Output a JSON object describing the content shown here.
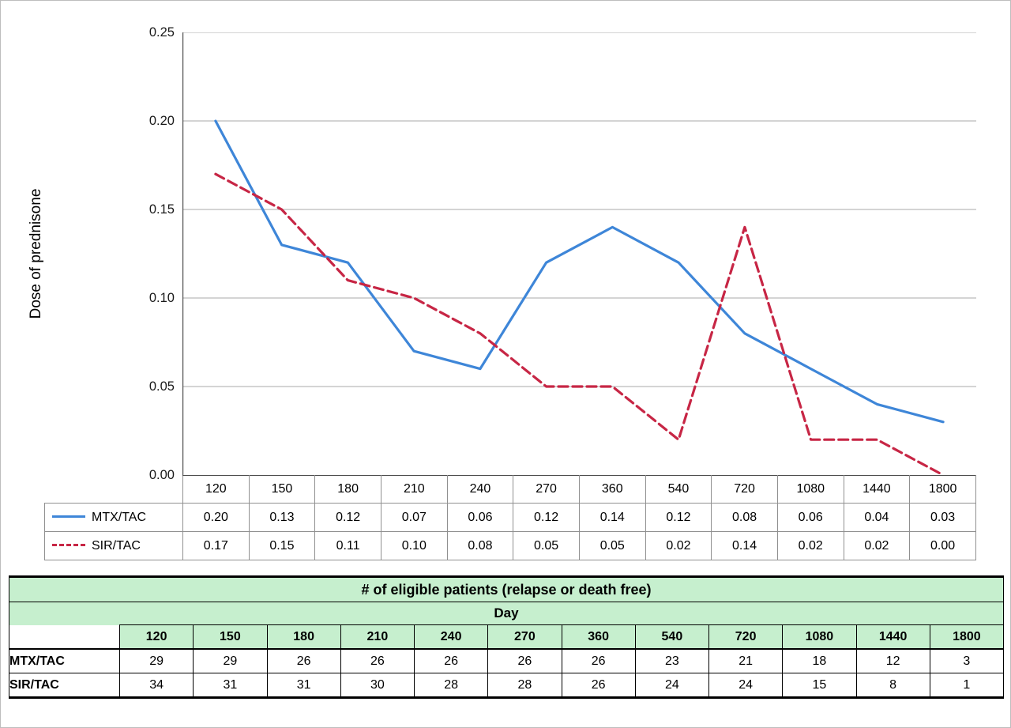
{
  "chart_data": {
    "type": "line",
    "title": "",
    "ylabel": "Dose of prednisone",
    "xlabel": "Day",
    "ylim": [
      0,
      0.25
    ],
    "grid": true,
    "legend_position": "data-table-left",
    "y_ticks": [
      "0.00",
      "0.05",
      "0.10",
      "0.15",
      "0.20",
      "0.25"
    ],
    "categories": [
      "120",
      "150",
      "180",
      "210",
      "240",
      "270",
      "360",
      "540",
      "720",
      "1080",
      "1440",
      "1800"
    ],
    "series": [
      {
        "name": "MTX/TAC",
        "style": "solid",
        "color": "#3E86D8",
        "values": [
          0.2,
          0.13,
          0.12,
          0.07,
          0.06,
          0.12,
          0.14,
          0.12,
          0.08,
          0.06,
          0.04,
          0.03
        ],
        "display_values": [
          "0.20",
          "0.13",
          "0.12",
          "0.07",
          "0.06",
          "0.12",
          "0.14",
          "0.12",
          "0.08",
          "0.06",
          "0.04",
          "0.03"
        ]
      },
      {
        "name": "SIR/TAC",
        "style": "dashed",
        "color": "#C72645",
        "values": [
          0.17,
          0.15,
          0.11,
          0.1,
          0.08,
          0.05,
          0.05,
          0.02,
          0.14,
          0.02,
          0.02,
          0.0
        ],
        "display_values": [
          "0.17",
          "0.15",
          "0.11",
          "0.10",
          "0.08",
          "0.05",
          "0.05",
          "0.02",
          "0.14",
          "0.02",
          "0.02",
          "0.00"
        ]
      }
    ]
  },
  "patient_table": {
    "title": "# of eligible patients (relapse or death free)",
    "day_label": "Day",
    "header_bg": "#C6EFCE",
    "days": [
      "120",
      "150",
      "180",
      "210",
      "240",
      "270",
      "360",
      "540",
      "720",
      "1080",
      "1440",
      "1800"
    ],
    "rows": [
      {
        "label": "MTX/TAC",
        "values": [
          "29",
          "29",
          "26",
          "26",
          "26",
          "26",
          "26",
          "23",
          "21",
          "18",
          "12",
          "3"
        ]
      },
      {
        "label": "SIR/TAC",
        "values": [
          "34",
          "31",
          "31",
          "30",
          "28",
          "28",
          "26",
          "24",
          "24",
          "15",
          "8",
          "1"
        ]
      }
    ]
  }
}
